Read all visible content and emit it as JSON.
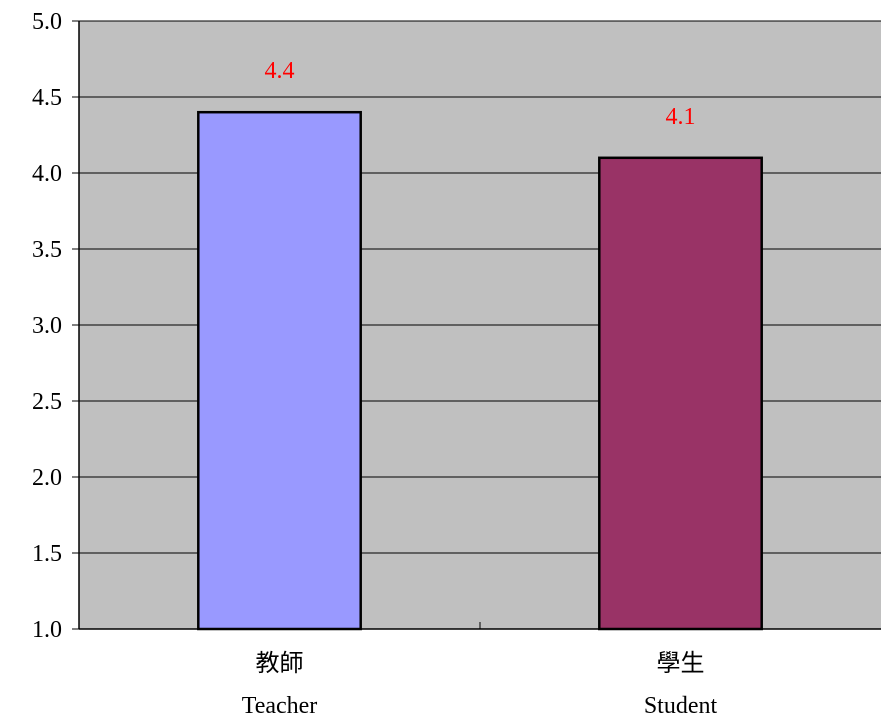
{
  "chart_data": {
    "type": "bar",
    "categories": [
      {
        "zh": "教師",
        "en": "Teacher"
      },
      {
        "zh": "學生",
        "en": "Student"
      }
    ],
    "values": [
      4.4,
      4.1
    ],
    "data_labels": [
      "4.4",
      "4.1"
    ],
    "ylim": [
      1.0,
      5.0
    ],
    "yticks": [
      "1.0",
      "1.5",
      "2.0",
      "2.5",
      "3.0",
      "3.5",
      "4.0",
      "4.5",
      "5.0"
    ],
    "grid": true,
    "legend": "none",
    "colors": {
      "bars": [
        "#9999ff",
        "#993366"
      ],
      "plot_background": "#c0c0c0",
      "data_label": "#ff0000",
      "bar_border": "#000000",
      "gridline": "#000000"
    }
  }
}
